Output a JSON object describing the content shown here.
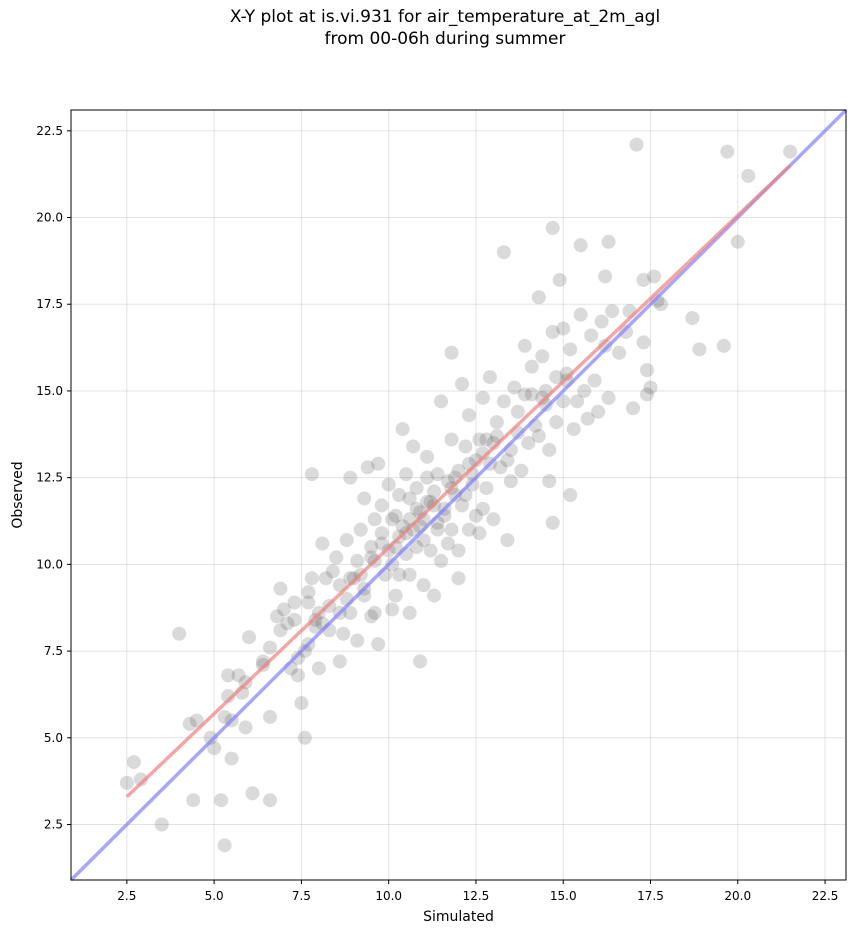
{
  "chart_data": {
    "type": "scatter",
    "title_line1": "X-Y plot at is.vi.931 for air_temperature_at_2m_agl",
    "title_line2": "from 00-06h during summer",
    "xlabel": "Simulated",
    "ylabel": "Observed",
    "xlim": [
      0.9,
      23.1
    ],
    "ylim": [
      0.9,
      23.1
    ],
    "xticks": [
      "2.5",
      "5.0",
      "7.5",
      "10.0",
      "12.5",
      "15.0",
      "17.5",
      "20.0",
      "22.5"
    ],
    "yticks": [
      "2.5",
      "5.0",
      "7.5",
      "10.0",
      "12.5",
      "15.0",
      "17.5",
      "20.0",
      "22.5"
    ],
    "grid": true,
    "colors": {
      "points": "#555555",
      "identity_line": "#8080ff",
      "fit_line": "#f08080"
    },
    "identity_line": {
      "x": [
        0.9,
        23.1
      ],
      "y": [
        0.9,
        23.1
      ]
    },
    "fit_line": {
      "x": [
        2.5,
        21.5
      ],
      "y": [
        3.3,
        21.5
      ]
    },
    "points": [
      [
        2.5,
        3.7
      ],
      [
        2.7,
        4.3
      ],
      [
        2.9,
        3.8
      ],
      [
        3.5,
        2.5
      ],
      [
        4.0,
        8.0
      ],
      [
        4.3,
        5.4
      ],
      [
        4.4,
        3.2
      ],
      [
        4.5,
        5.5
      ],
      [
        4.9,
        5.0
      ],
      [
        5.0,
        4.7
      ],
      [
        5.2,
        3.2
      ],
      [
        5.3,
        5.6
      ],
      [
        5.3,
        1.9
      ],
      [
        5.4,
        6.8
      ],
      [
        5.4,
        6.2
      ],
      [
        5.5,
        5.5
      ],
      [
        5.5,
        4.4
      ],
      [
        5.7,
        6.8
      ],
      [
        5.8,
        6.3
      ],
      [
        5.9,
        5.3
      ],
      [
        5.9,
        6.6
      ],
      [
        6.0,
        7.9
      ],
      [
        6.1,
        3.4
      ],
      [
        6.4,
        7.2
      ],
      [
        6.4,
        7.1
      ],
      [
        6.6,
        3.2
      ],
      [
        6.6,
        7.6
      ],
      [
        6.6,
        5.6
      ],
      [
        6.8,
        8.5
      ],
      [
        6.9,
        9.3
      ],
      [
        6.9,
        8.1
      ],
      [
        7.0,
        8.7
      ],
      [
        7.1,
        8.3
      ],
      [
        7.2,
        7.0
      ],
      [
        7.3,
        8.4
      ],
      [
        7.3,
        8.9
      ],
      [
        7.4,
        7.3
      ],
      [
        7.4,
        6.8
      ],
      [
        7.5,
        6.0
      ],
      [
        7.6,
        5.0
      ],
      [
        7.6,
        7.5
      ],
      [
        7.7,
        9.2
      ],
      [
        7.7,
        8.9
      ],
      [
        7.7,
        7.7
      ],
      [
        7.8,
        9.6
      ],
      [
        7.8,
        12.6
      ],
      [
        7.9,
        8.2
      ],
      [
        8.0,
        8.6
      ],
      [
        8.1,
        10.6
      ],
      [
        8.0,
        7.0
      ],
      [
        8.1,
        8.3
      ],
      [
        8.2,
        9.6
      ],
      [
        8.3,
        8.8
      ],
      [
        8.3,
        8.1
      ],
      [
        8.4,
        9.8
      ],
      [
        8.5,
        10.2
      ],
      [
        8.6,
        9.4
      ],
      [
        8.6,
        7.2
      ],
      [
        8.7,
        8.0
      ],
      [
        8.8,
        10.7
      ],
      [
        8.8,
        9.0
      ],
      [
        8.9,
        12.5
      ],
      [
        8.9,
        8.6
      ],
      [
        9.0,
        9.6
      ],
      [
        9.1,
        10.1
      ],
      [
        9.1,
        7.8
      ],
      [
        9.2,
        11.0
      ],
      [
        9.3,
        9.3
      ],
      [
        9.3,
        11.9
      ],
      [
        9.4,
        12.8
      ],
      [
        9.5,
        8.5
      ],
      [
        9.5,
        10.5
      ],
      [
        9.6,
        11.3
      ],
      [
        9.6,
        8.6
      ],
      [
        9.7,
        12.9
      ],
      [
        9.7,
        7.7
      ],
      [
        9.8,
        10.9
      ],
      [
        9.8,
        11.7
      ],
      [
        9.9,
        9.7
      ],
      [
        10.0,
        10.4
      ],
      [
        10.0,
        12.3
      ],
      [
        10.1,
        10.0
      ],
      [
        10.1,
        8.7
      ],
      [
        10.2,
        11.4
      ],
      [
        10.2,
        9.1
      ],
      [
        10.3,
        10.8
      ],
      [
        10.3,
        12.0
      ],
      [
        10.3,
        9.7
      ],
      [
        10.4,
        13.9
      ],
      [
        10.4,
        11.1
      ],
      [
        10.5,
        10.3
      ],
      [
        10.5,
        12.6
      ],
      [
        10.6,
        8.6
      ],
      [
        10.6,
        9.7
      ],
      [
        10.6,
        11.9
      ],
      [
        10.7,
        11.0
      ],
      [
        10.7,
        13.4
      ],
      [
        10.8,
        10.5
      ],
      [
        10.8,
        12.2
      ],
      [
        10.9,
        7.2
      ],
      [
        10.9,
        11.5
      ],
      [
        11.0,
        9.4
      ],
      [
        11.0,
        10.7
      ],
      [
        11.0,
        11.3
      ],
      [
        11.1,
        12.5
      ],
      [
        11.1,
        13.1
      ],
      [
        11.2,
        10.4
      ],
      [
        11.2,
        11.8
      ],
      [
        11.3,
        12.1
      ],
      [
        11.3,
        9.1
      ],
      [
        11.4,
        11.0
      ],
      [
        11.4,
        12.6
      ],
      [
        11.5,
        14.7
      ],
      [
        11.5,
        10.1
      ],
      [
        11.6,
        11.6
      ],
      [
        11.7,
        12.4
      ],
      [
        11.7,
        10.6
      ],
      [
        11.8,
        13.6
      ],
      [
        11.8,
        11.0
      ],
      [
        11.8,
        16.1
      ],
      [
        11.9,
        12.0
      ],
      [
        12.0,
        9.6
      ],
      [
        12.0,
        12.7
      ],
      [
        12.0,
        10.4
      ],
      [
        12.1,
        15.2
      ],
      [
        12.1,
        11.7
      ],
      [
        12.2,
        13.4
      ],
      [
        12.2,
        12.0
      ],
      [
        12.3,
        11.0
      ],
      [
        12.3,
        14.3
      ],
      [
        12.4,
        12.3
      ],
      [
        12.5,
        11.4
      ],
      [
        12.5,
        13.0
      ],
      [
        12.6,
        10.9
      ],
      [
        12.6,
        13.6
      ],
      [
        12.7,
        11.6
      ],
      [
        12.7,
        14.8
      ],
      [
        12.8,
        12.2
      ],
      [
        12.9,
        15.4
      ],
      [
        12.9,
        12.9
      ],
      [
        13.0,
        13.5
      ],
      [
        13.0,
        11.3
      ],
      [
        13.1,
        14.1
      ],
      [
        13.2,
        12.8
      ],
      [
        13.3,
        19.0
      ],
      [
        13.3,
        14.7
      ],
      [
        13.4,
        10.7
      ],
      [
        13.5,
        13.3
      ],
      [
        13.5,
        12.4
      ],
      [
        13.6,
        15.1
      ],
      [
        13.7,
        13.8
      ],
      [
        13.7,
        14.4
      ],
      [
        13.8,
        12.7
      ],
      [
        13.9,
        16.3
      ],
      [
        13.9,
        14.9
      ],
      [
        14.0,
        13.5
      ],
      [
        14.1,
        15.7
      ],
      [
        14.2,
        14.0
      ],
      [
        14.3,
        17.7
      ],
      [
        14.3,
        13.7
      ],
      [
        14.4,
        16.0
      ],
      [
        14.4,
        14.8
      ],
      [
        14.5,
        15.0
      ],
      [
        14.6,
        13.3
      ],
      [
        14.6,
        12.4
      ],
      [
        14.7,
        11.2
      ],
      [
        14.7,
        16.7
      ],
      [
        14.7,
        19.7
      ],
      [
        14.8,
        15.4
      ],
      [
        14.8,
        14.1
      ],
      [
        14.9,
        18.2
      ],
      [
        15.0,
        16.8
      ],
      [
        15.0,
        14.7
      ],
      [
        15.1,
        15.3
      ],
      [
        15.2,
        12.0
      ],
      [
        15.2,
        16.2
      ],
      [
        15.3,
        13.9
      ],
      [
        15.4,
        14.7
      ],
      [
        15.5,
        19.2
      ],
      [
        15.5,
        17.2
      ],
      [
        15.6,
        15.0
      ],
      [
        15.7,
        14.2
      ],
      [
        15.8,
        16.6
      ],
      [
        15.9,
        15.3
      ],
      [
        16.0,
        14.4
      ],
      [
        16.1,
        17.0
      ],
      [
        16.2,
        16.3
      ],
      [
        16.2,
        18.3
      ],
      [
        16.3,
        14.8
      ],
      [
        16.3,
        19.3
      ],
      [
        16.4,
        17.3
      ],
      [
        16.6,
        16.1
      ],
      [
        16.8,
        16.7
      ],
      [
        16.9,
        17.3
      ],
      [
        17.0,
        14.5
      ],
      [
        17.1,
        22.1
      ],
      [
        17.3,
        18.2
      ],
      [
        17.3,
        16.4
      ],
      [
        17.4,
        15.6
      ],
      [
        17.4,
        14.9
      ],
      [
        17.5,
        15.1
      ],
      [
        17.6,
        18.3
      ],
      [
        17.7,
        17.6
      ],
      [
        17.8,
        17.5
      ],
      [
        18.7,
        17.1
      ],
      [
        18.9,
        16.2
      ],
      [
        19.6,
        16.3
      ],
      [
        19.7,
        21.9
      ],
      [
        20.0,
        19.3
      ],
      [
        20.3,
        21.2
      ],
      [
        21.5,
        21.9
      ],
      [
        9.5,
        10.2
      ],
      [
        10.9,
        11.1
      ],
      [
        11.6,
        11.4
      ],
      [
        12.4,
        12.6
      ],
      [
        9.8,
        10.6
      ],
      [
        10.6,
        11.3
      ],
      [
        11.3,
        11.7
      ],
      [
        8.9,
        9.6
      ],
      [
        12.8,
        13.6
      ],
      [
        14.1,
        14.9
      ],
      [
        9.2,
        9.7
      ],
      [
        10.2,
        10.5
      ],
      [
        11.8,
        12.2
      ],
      [
        13.4,
        13.0
      ],
      [
        12.3,
        12.9
      ],
      [
        10.8,
        11.6
      ],
      [
        9.6,
        10.1
      ],
      [
        11.9,
        12.5
      ],
      [
        14.5,
        14.6
      ],
      [
        15.1,
        15.5
      ],
      [
        10.1,
        11.3
      ],
      [
        11.1,
        11.8
      ],
      [
        12.7,
        13.2
      ],
      [
        8.6,
        8.6
      ],
      [
        9.3,
        9.1
      ],
      [
        10.5,
        10.9
      ],
      [
        11.4,
        11.2
      ],
      [
        13.1,
        13.7
      ],
      [
        7.9,
        8.4
      ]
    ]
  }
}
